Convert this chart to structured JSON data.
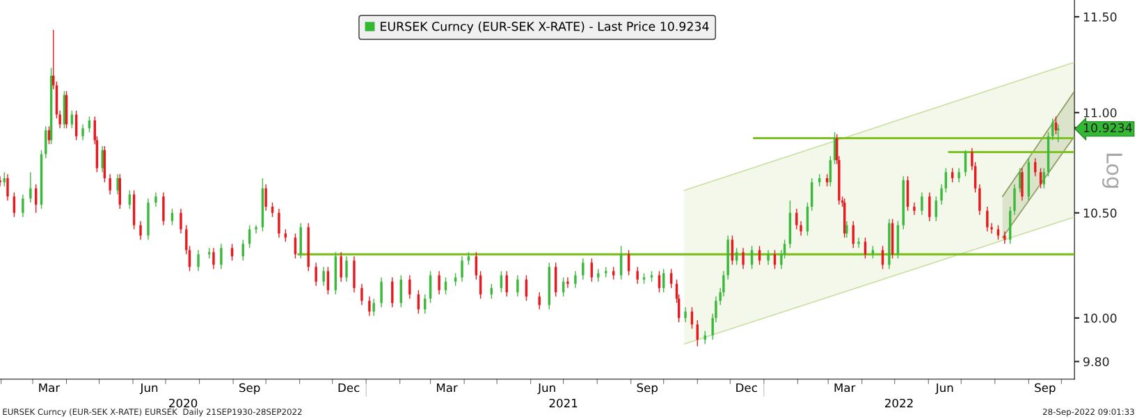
{
  "chart_data": {
    "type": "candlestick",
    "ylabel": "Log",
    "log": true,
    "grid": false,
    "legend": "top",
    "xlim": [
      "2020-01-31",
      "2022-10-13"
    ],
    "ylim": [
      9.72,
      11.59
    ],
    "yticks": [
      {
        "value": 9.8,
        "label": "9.80"
      },
      {
        "value": 10.0,
        "label": "10.00"
      },
      {
        "value": 10.5,
        "label": "10.50"
      },
      {
        "value": 11.0,
        "label": "11.00"
      },
      {
        "value": 11.5,
        "label": "11.50"
      },
      {
        "value": 10.9234,
        "label": "10.9234"
      }
    ],
    "xticks": [
      {
        "value": "2020-02-01",
        "label": null
      },
      {
        "value": "2020-03-01",
        "label": null
      },
      {
        "value": "2020-03-16",
        "label": "Mar"
      },
      {
        "value": "2020-04-01",
        "label": null
      },
      {
        "value": "2020-05-01",
        "label": null
      },
      {
        "value": "2020-06-01",
        "label": null
      },
      {
        "value": "2020-06-16",
        "label": "Jun"
      },
      {
        "value": "2020-07-01",
        "label": null
      },
      {
        "value": "2020-08-01",
        "label": null
      },
      {
        "value": "2020-09-01",
        "label": null
      },
      {
        "value": "2020-09-16",
        "label": "Sep"
      },
      {
        "value": "2020-10-01",
        "label": null
      },
      {
        "value": "2020-11-01",
        "label": null
      },
      {
        "value": "2020-12-01",
        "label": null
      },
      {
        "value": "2020-12-16",
        "label": "Dec"
      },
      {
        "value": "2021-01-01",
        "label": null
      },
      {
        "value": "2021-02-01",
        "label": null
      },
      {
        "value": "2021-03-01",
        "label": null
      },
      {
        "value": "2021-03-16",
        "label": "Mar"
      },
      {
        "value": "2021-04-01",
        "label": null
      },
      {
        "value": "2021-05-01",
        "label": null
      },
      {
        "value": "2021-06-01",
        "label": null
      },
      {
        "value": "2021-06-16",
        "label": "Jun"
      },
      {
        "value": "2021-07-01",
        "label": null
      },
      {
        "value": "2021-08-01",
        "label": null
      },
      {
        "value": "2021-09-01",
        "label": null
      },
      {
        "value": "2021-09-16",
        "label": "Sep"
      },
      {
        "value": "2021-10-01",
        "label": null
      },
      {
        "value": "2021-11-01",
        "label": null
      },
      {
        "value": "2021-12-01",
        "label": null
      },
      {
        "value": "2021-12-16",
        "label": "Dec"
      },
      {
        "value": "2022-01-01",
        "label": null
      },
      {
        "value": "2022-02-01",
        "label": null
      },
      {
        "value": "2022-03-01",
        "label": null
      },
      {
        "value": "2022-03-16",
        "label": "Mar"
      },
      {
        "value": "2022-04-01",
        "label": null
      },
      {
        "value": "2022-05-01",
        "label": null
      },
      {
        "value": "2022-06-01",
        "label": null
      },
      {
        "value": "2022-06-16",
        "label": "Jun"
      },
      {
        "value": "2022-07-01",
        "label": null
      },
      {
        "value": "2022-08-01",
        "label": null
      },
      {
        "value": "2022-09-01",
        "label": null
      },
      {
        "value": "2022-09-16",
        "label": "Sep"
      },
      {
        "value": "2022-10-01",
        "label": null
      }
    ],
    "x2lim": [
      "2020-01-31",
      "2022-10-13"
    ],
    "x2ticks": [
      {
        "value": "2020-07-17",
        "label": "2020"
      },
      {
        "value": "2021-01-01",
        "label": null
      },
      {
        "value": "2021-07-01",
        "label": "2021"
      },
      {
        "value": "2022-01-01",
        "label": null
      },
      {
        "value": "2022-05-05",
        "label": "2022"
      }
    ],
    "annotations": [
      "EURSEK Curncy (EUR-SEK X-RATE) EURSEK  Daily 21SEP1930-28SEP2022",
      "28-Sep-2022 09:01:33"
    ],
    "series": [
      {
        "type": "line",
        "x": [
          "2021-10-20",
          "2022-10-13"
        ],
        "values": [
          10.61,
          11.26
        ],
        "color": "#c9e0a2"
      },
      {
        "type": "line",
        "x": [
          "2021-10-20",
          "2022-10-13"
        ],
        "values": [
          9.88,
          10.48
        ],
        "color": "#c9e0a2"
      },
      {
        "type": "line",
        "x": [
          "2022-08-08",
          "2022-10-13"
        ],
        "values": [
          10.58,
          11.11
        ],
        "color": "#8c9a5c"
      },
      {
        "type": "line",
        "x": [
          "2022-08-08",
          "2022-10-13"
        ],
        "values": [
          10.38,
          10.88
        ],
        "color": "#8c9a5c"
      },
      {
        "type": "line",
        "x": [
          "2020-10-31",
          "2022-10-13"
        ],
        "values": [
          10.3,
          10.3
        ],
        "color": "#7dc21e"
      },
      {
        "type": "line",
        "x": [
          "2021-12-23",
          "2022-10-13"
        ],
        "values": [
          10.87,
          10.87
        ],
        "color": "#7dc21e"
      },
      {
        "type": "line",
        "x": [
          "2022-06-20",
          "2022-10-13"
        ],
        "values": [
          10.8,
          10.8
        ],
        "color": "#7dc21e"
      },
      {
        "name": "EURSEK Curncy (EUR-SEK X-RATE) - Last Price 10.9234",
        "color": "#33b833",
        "colors": [
          "#e8191e",
          "#3cb83c",
          "#e8191e",
          "#e8191e",
          "#3cb83c",
          "#3cb83c",
          "#e8191e",
          "#3cb83c",
          "#3cb83c",
          "#e8191e",
          "#3cb83c",
          "#e8191e",
          "#e8191e",
          "#e8191e",
          "#3cb83c",
          "#e8191e",
          "#3cb83c",
          "#e8191e",
          "#3cb83c",
          "#3cb83c",
          "#e8191e",
          "#e8191e",
          "#3cb83c",
          "#e8191e",
          "#e8191e",
          "#3cb83c",
          "#e8191e",
          "#3cb83c",
          "#e8191e",
          "#e8191e",
          "#3cb83c",
          "#3cb83c",
          "#e8191e",
          "#3cb83c",
          "#e8191e",
          "#e8191e",
          "#e8191e",
          "#3cb83c",
          "#3cb83c",
          "#e8191e",
          "#3cb83c",
          "#e8191e",
          "#3cb83c",
          "#3cb83c",
          "#3cb83c",
          "#3cb83c",
          "#e8191e",
          "#e8191e",
          "#e8191e",
          "#e8191e",
          "#e8191e",
          "#3cb83c",
          "#e8191e",
          "#e8191e",
          "#3cb83c",
          "#e8191e",
          "#3cb83c",
          "#e8191e",
          "#3cb83c",
          "#e8191e",
          "#e8191e",
          "#e8191e",
          "#3cb83c",
          "#3cb83c",
          "#e8191e",
          "#3cb83c",
          "#e8191e",
          "#e8191e",
          "#3cb83c",
          "#3cb83c",
          "#e8191e",
          "#3cb83c",
          "#3cb83c",
          "#3cb83c",
          "#3cb83c",
          "#e8191e",
          "#e8191e",
          "#3cb83c",
          "#3cb83c",
          "#e8191e",
          "#3cb83c",
          "#e8191e",
          "#e8191e",
          "#3cb83c",
          "#e8191e",
          "#3cb83c",
          "#e8191e",
          "#3cb83c",
          "#3cb83c",
          "#e8191e",
          "#3cb83c",
          "#3cb83c",
          "#e8191e",
          "#3cb83c",
          "#e8191e",
          "#e8191e",
          "#3cb83c",
          "#3cb83c",
          "#e8191e",
          "#3cb83c",
          "#e8191e",
          "#e8191e",
          "#e8191e",
          "#3cb83c",
          "#e8191e",
          "#e8191e",
          "#3cb83c",
          "#3cb83c",
          "#3cb83c",
          "#3cb83c",
          "#3cb83c",
          "#3cb83c",
          "#e8191e",
          "#3cb83c",
          "#e8191e",
          "#3cb83c",
          "#e8191e",
          "#3cb83c",
          "#e8191e",
          "#3cb83c",
          "#3cb83c",
          "#3cb83c",
          "#e8191e",
          "#e8191e",
          "#3cb83c",
          "#3cb83c",
          "#3cb83c",
          "#e8191e",
          "#3cb83c",
          "#3cb83c",
          "#e8191e",
          "#e8191e",
          "#e8191e",
          "#e8191e",
          "#3cb83c",
          "#e8191e",
          "#3cb83c",
          "#e8191e",
          "#3cb83c",
          "#e8191e",
          "#3cb83c",
          "#e8191e",
          "#3cb83c",
          "#3cb83c",
          "#e8191e",
          "#e8191e",
          "#3cb83c",
          "#e8191e",
          "#3cb83c",
          "#3cb83c",
          "#3cb83c",
          "#e8191e",
          "#3cb83c",
          "#3cb83c",
          "#e8191e",
          "#e8191e",
          "#e8191e",
          "#e8191e",
          "#e8191e",
          "#e8191e",
          "#e8191e",
          "#3cb83c",
          "#3cb83c",
          "#3cb83c",
          "#e8191e",
          "#3cb83c",
          "#e8191e",
          "#e8191e",
          "#3cb83c",
          "#3cb83c",
          "#3cb83c",
          "#e8191e",
          "#3cb83c"
        ],
        "x": [
          "2020-01-31",
          "2020-02-04",
          "2020-02-07",
          "2020-02-13",
          "2020-02-21",
          "2020-02-28",
          "2020-03-04",
          "2020-03-09",
          "2020-03-13",
          "2020-03-16",
          "2020-03-18",
          "2020-03-20",
          "2020-03-23",
          "2020-03-26",
          "2020-03-30",
          "2020-04-01",
          "2020-04-06",
          "2020-04-10",
          "2020-04-16",
          "2020-04-22",
          "2020-04-27",
          "2020-04-29",
          "2020-05-04",
          "2020-05-06",
          "2020-05-11",
          "2020-05-18",
          "2020-05-20",
          "2020-05-29",
          "2020-06-02",
          "2020-06-08",
          "2020-06-15",
          "2020-06-22",
          "2020-06-29",
          "2020-07-07",
          "2020-07-15",
          "2020-07-20",
          "2020-07-23",
          "2020-07-31",
          "2020-08-10",
          "2020-08-14",
          "2020-08-21",
          "2020-08-31",
          "2020-09-10",
          "2020-09-16",
          "2020-09-22",
          "2020-09-28",
          "2020-10-01",
          "2020-10-07",
          "2020-10-13",
          "2020-10-19",
          "2020-10-28",
          "2020-11-02",
          "2020-11-09",
          "2020-11-16",
          "2020-11-23",
          "2020-11-27",
          "2020-12-04",
          "2020-12-09",
          "2020-12-14",
          "2020-12-21",
          "2020-12-28",
          "2021-01-04",
          "2021-01-08",
          "2021-01-15",
          "2021-01-25",
          "2021-02-02",
          "2021-02-10",
          "2021-02-18",
          "2021-02-24",
          "2021-03-01",
          "2021-03-09",
          "2021-03-15",
          "2021-03-24",
          "2021-03-30",
          "2021-04-05",
          "2021-04-12",
          "2021-04-16",
          "2021-04-26",
          "2021-05-05",
          "2021-05-10",
          "2021-05-20",
          "2021-05-28",
          "2021-06-09",
          "2021-06-18",
          "2021-06-24",
          "2021-07-01",
          "2021-07-05",
          "2021-07-12",
          "2021-07-19",
          "2021-07-27",
          "2021-08-02",
          "2021-08-09",
          "2021-08-16",
          "2021-08-23",
          "2021-08-30",
          "2021-09-07",
          "2021-09-13",
          "2021-09-20",
          "2021-09-27",
          "2021-10-01",
          "2021-10-08",
          "2021-10-13",
          "2021-10-15",
          "2021-10-21",
          "2021-10-27",
          "2021-11-01",
          "2021-11-08",
          "2021-11-15",
          "2021-11-18",
          "2021-11-22",
          "2021-11-25",
          "2021-11-29",
          "2021-12-03",
          "2021-12-07",
          "2021-12-13",
          "2021-12-21",
          "2021-12-28",
          "2022-01-05",
          "2022-01-11",
          "2022-01-17",
          "2022-01-20",
          "2022-01-25",
          "2022-01-31",
          "2022-02-04",
          "2022-02-10",
          "2022-02-14",
          "2022-02-21",
          "2022-02-28",
          "2022-03-03",
          "2022-03-07",
          "2022-03-09",
          "2022-03-11",
          "2022-03-14",
          "2022-03-16",
          "2022-03-18",
          "2022-03-24",
          "2022-03-29",
          "2022-04-04",
          "2022-04-11",
          "2022-04-20",
          "2022-04-26",
          "2022-04-29",
          "2022-05-04",
          "2022-05-09",
          "2022-05-13",
          "2022-05-19",
          "2022-05-26",
          "2022-06-02",
          "2022-06-08",
          "2022-06-13",
          "2022-06-17",
          "2022-06-23",
          "2022-06-29",
          "2022-07-05",
          "2022-07-11",
          "2022-07-14",
          "2022-07-18",
          "2022-07-25",
          "2022-07-29",
          "2022-08-04",
          "2022-08-10",
          "2022-08-15",
          "2022-08-19",
          "2022-08-24",
          "2022-08-26",
          "2022-09-01",
          "2022-09-07",
          "2022-09-12",
          "2022-09-15",
          "2022-09-19",
          "2022-09-23",
          "2022-09-26",
          "2022-09-28"
        ],
        "ohlc": [
          [
            10.66,
            10.68,
            10.63,
            10.65
          ],
          [
            10.65,
            10.7,
            10.63,
            10.67
          ],
          [
            10.67,
            10.69,
            10.56,
            10.58
          ],
          [
            10.58,
            10.6,
            10.48,
            10.5
          ],
          [
            10.5,
            10.59,
            10.48,
            10.57
          ],
          [
            10.57,
            10.7,
            10.55,
            10.62
          ],
          [
            10.62,
            10.64,
            10.5,
            10.54
          ],
          [
            10.54,
            10.81,
            10.52,
            10.79
          ],
          [
            10.79,
            10.93,
            10.77,
            10.91
          ],
          [
            10.91,
            10.93,
            10.84,
            10.86
          ],
          [
            10.86,
            11.23,
            10.84,
            11.19
          ],
          [
            11.19,
            11.43,
            11.12,
            11.14
          ],
          [
            11.14,
            11.16,
            10.97,
            10.99
          ],
          [
            10.99,
            11.01,
            10.92,
            10.94
          ],
          [
            10.94,
            11.11,
            10.92,
            11.09
          ],
          [
            11.09,
            11.11,
            10.92,
            10.94
          ],
          [
            10.94,
            11.01,
            10.92,
            10.99
          ],
          [
            10.99,
            11.01,
            10.86,
            10.88
          ],
          [
            10.88,
            10.94,
            10.86,
            10.92
          ],
          [
            10.92,
            10.98,
            10.9,
            10.96
          ],
          [
            10.96,
            10.98,
            10.84,
            10.86
          ],
          [
            10.86,
            10.88,
            10.7,
            10.72
          ],
          [
            10.72,
            10.83,
            10.7,
            10.81
          ],
          [
            10.81,
            10.83,
            10.65,
            10.67
          ],
          [
            10.67,
            10.69,
            10.59,
            10.61
          ],
          [
            10.61,
            10.69,
            10.59,
            10.67
          ],
          [
            10.67,
            10.69,
            10.52,
            10.54
          ],
          [
            10.54,
            10.61,
            10.52,
            10.59
          ],
          [
            10.59,
            10.61,
            10.42,
            10.44
          ],
          [
            10.44,
            10.46,
            10.37,
            10.39
          ],
          [
            10.39,
            10.57,
            10.37,
            10.55
          ],
          [
            10.55,
            10.6,
            10.53,
            10.58
          ],
          [
            10.58,
            10.6,
            10.44,
            10.46
          ],
          [
            10.46,
            10.52,
            10.44,
            10.5
          ],
          [
            10.5,
            10.52,
            10.4,
            10.42
          ],
          [
            10.42,
            10.44,
            10.3,
            10.32
          ],
          [
            10.32,
            10.34,
            10.22,
            10.24
          ],
          [
            10.24,
            10.32,
            10.22,
            10.3
          ],
          [
            10.3,
            10.33,
            10.28,
            10.31
          ],
          [
            10.31,
            10.33,
            10.23,
            10.25
          ],
          [
            10.25,
            10.35,
            10.23,
            10.33
          ],
          [
            10.33,
            10.35,
            10.27,
            10.29
          ],
          [
            10.29,
            10.37,
            10.27,
            10.35
          ],
          [
            10.35,
            10.44,
            10.33,
            10.42
          ],
          [
            10.42,
            10.44,
            10.4,
            10.43
          ],
          [
            10.43,
            10.67,
            10.41,
            10.62
          ],
          [
            10.62,
            10.64,
            10.51,
            10.53
          ],
          [
            10.53,
            10.55,
            10.48,
            10.5
          ],
          [
            10.5,
            10.52,
            10.38,
            10.4
          ],
          [
            10.4,
            10.42,
            10.36,
            10.38
          ],
          [
            10.38,
            10.4,
            10.28,
            10.3
          ],
          [
            10.3,
            10.45,
            10.28,
            10.43
          ],
          [
            10.43,
            10.45,
            10.22,
            10.24
          ],
          [
            10.24,
            10.26,
            10.15,
            10.17
          ],
          [
            10.17,
            10.24,
            10.15,
            10.22
          ],
          [
            10.22,
            10.24,
            10.11,
            10.13
          ],
          [
            10.13,
            10.31,
            10.11,
            10.29
          ],
          [
            10.29,
            10.31,
            10.17,
            10.19
          ],
          [
            10.19,
            10.29,
            10.17,
            10.27
          ],
          [
            10.27,
            10.29,
            10.12,
            10.14
          ],
          [
            10.14,
            10.16,
            10.06,
            10.08
          ],
          [
            10.08,
            10.1,
            10.01,
            10.03
          ],
          [
            10.03,
            10.09,
            10.01,
            10.07
          ],
          [
            10.07,
            10.19,
            10.05,
            10.17
          ],
          [
            10.17,
            10.19,
            10.05,
            10.07
          ],
          [
            10.07,
            10.2,
            10.05,
            10.18
          ],
          [
            10.18,
            10.2,
            10.09,
            10.11
          ],
          [
            10.11,
            10.13,
            10.02,
            10.04
          ],
          [
            10.04,
            10.11,
            10.02,
            10.09
          ],
          [
            10.09,
            10.22,
            10.07,
            10.2
          ],
          [
            10.2,
            10.22,
            10.11,
            10.13
          ],
          [
            10.13,
            10.19,
            10.11,
            10.17
          ],
          [
            10.17,
            10.21,
            10.15,
            10.19
          ],
          [
            10.19,
            10.29,
            10.17,
            10.27
          ],
          [
            10.27,
            10.31,
            10.25,
            10.29
          ],
          [
            10.29,
            10.31,
            10.18,
            10.2
          ],
          [
            10.2,
            10.22,
            10.09,
            10.11
          ],
          [
            10.11,
            10.16,
            10.09,
            10.14
          ],
          [
            10.14,
            10.22,
            10.12,
            10.2
          ],
          [
            10.2,
            10.22,
            10.1,
            10.12
          ],
          [
            10.12,
            10.2,
            10.1,
            10.18
          ],
          [
            10.18,
            10.2,
            10.08,
            10.1
          ],
          [
            10.1,
            10.12,
            10.04,
            10.06
          ],
          [
            10.06,
            10.26,
            10.04,
            10.24
          ],
          [
            10.24,
            10.26,
            10.1,
            10.12
          ],
          [
            10.12,
            10.19,
            10.1,
            10.17
          ],
          [
            10.17,
            10.19,
            10.14,
            10.16
          ],
          [
            10.16,
            10.22,
            10.14,
            10.2
          ],
          [
            10.2,
            10.28,
            10.18,
            10.26
          ],
          [
            10.26,
            10.28,
            10.17,
            10.19
          ],
          [
            10.19,
            10.23,
            10.17,
            10.21
          ],
          [
            10.21,
            10.24,
            10.19,
            10.22
          ],
          [
            10.22,
            10.24,
            10.18,
            10.2
          ],
          [
            10.2,
            10.34,
            10.18,
            10.3
          ],
          [
            10.3,
            10.32,
            10.2,
            10.22
          ],
          [
            10.22,
            10.24,
            10.16,
            10.18
          ],
          [
            10.18,
            10.21,
            10.16,
            10.19
          ],
          [
            10.19,
            10.22,
            10.17,
            10.2
          ],
          [
            10.2,
            10.22,
            10.12,
            10.14
          ],
          [
            10.14,
            10.23,
            10.12,
            10.21
          ],
          [
            10.21,
            10.23,
            10.14,
            10.16
          ],
          [
            10.16,
            10.18,
            10.07,
            10.09
          ],
          [
            10.09,
            10.11,
            9.98,
            10.0
          ],
          [
            10.0,
            10.05,
            9.98,
            10.03
          ],
          [
            10.03,
            10.05,
            9.95,
            9.97
          ],
          [
            9.97,
            9.99,
            9.87,
            9.9
          ],
          [
            9.9,
            9.94,
            9.88,
            9.92
          ],
          [
            9.92,
            10.02,
            9.9,
            10.0
          ],
          [
            10.0,
            10.1,
            9.98,
            10.08
          ],
          [
            10.08,
            10.14,
            10.06,
            10.12
          ],
          [
            10.12,
            10.22,
            10.1,
            10.2
          ],
          [
            10.2,
            10.39,
            10.18,
            10.37
          ],
          [
            10.37,
            10.39,
            10.25,
            10.27
          ],
          [
            10.27,
            10.33,
            10.25,
            10.31
          ],
          [
            10.31,
            10.33,
            10.23,
            10.25
          ],
          [
            10.25,
            10.34,
            10.23,
            10.32
          ],
          [
            10.32,
            10.34,
            10.25,
            10.27
          ],
          [
            10.27,
            10.32,
            10.25,
            10.3
          ],
          [
            10.3,
            10.32,
            10.23,
            10.25
          ],
          [
            10.25,
            10.32,
            10.23,
            10.3
          ],
          [
            10.3,
            10.37,
            10.28,
            10.35
          ],
          [
            10.35,
            10.56,
            10.33,
            10.5
          ],
          [
            10.5,
            10.52,
            10.42,
            10.44
          ],
          [
            10.44,
            10.46,
            10.39,
            10.41
          ],
          [
            10.41,
            10.55,
            10.39,
            10.53
          ],
          [
            10.53,
            10.67,
            10.51,
            10.65
          ],
          [
            10.65,
            10.69,
            10.63,
            10.67
          ],
          [
            10.67,
            10.69,
            10.63,
            10.65
          ],
          [
            10.65,
            10.78,
            10.63,
            10.76
          ],
          [
            10.76,
            10.9,
            10.74,
            10.87
          ],
          [
            10.87,
            10.89,
            10.74,
            10.76
          ],
          [
            10.76,
            10.78,
            10.54,
            10.56
          ],
          [
            10.56,
            10.58,
            10.53,
            10.55
          ],
          [
            10.55,
            10.57,
            10.38,
            10.4
          ],
          [
            10.4,
            10.46,
            10.38,
            10.44
          ],
          [
            10.44,
            10.46,
            10.33,
            10.35
          ],
          [
            10.35,
            10.38,
            10.33,
            10.36
          ],
          [
            10.36,
            10.38,
            10.28,
            10.3
          ],
          [
            10.3,
            10.34,
            10.28,
            10.32
          ],
          [
            10.32,
            10.34,
            10.23,
            10.25
          ],
          [
            10.25,
            10.47,
            10.23,
            10.45
          ],
          [
            10.45,
            10.47,
            10.28,
            10.3
          ],
          [
            10.3,
            10.46,
            10.28,
            10.44
          ],
          [
            10.44,
            10.68,
            10.42,
            10.66
          ],
          [
            10.66,
            10.68,
            10.51,
            10.53
          ],
          [
            10.53,
            10.55,
            10.49,
            10.51
          ],
          [
            10.51,
            10.6,
            10.49,
            10.58
          ],
          [
            10.58,
            10.6,
            10.46,
            10.48
          ],
          [
            10.48,
            10.58,
            10.46,
            10.56
          ],
          [
            10.56,
            10.64,
            10.54,
            10.62
          ],
          [
            10.62,
            10.72,
            10.6,
            10.7
          ],
          [
            10.7,
            10.72,
            10.65,
            10.67
          ],
          [
            10.67,
            10.72,
            10.65,
            10.7
          ],
          [
            10.7,
            10.81,
            10.68,
            10.8
          ],
          [
            10.8,
            10.82,
            10.71,
            10.73
          ],
          [
            10.73,
            10.75,
            10.6,
            10.62
          ],
          [
            10.62,
            10.64,
            10.49,
            10.51
          ],
          [
            10.51,
            10.53,
            10.41,
            10.43
          ],
          [
            10.43,
            10.45,
            10.4,
            10.42
          ],
          [
            10.42,
            10.44,
            10.37,
            10.39
          ],
          [
            10.39,
            10.41,
            10.35,
            10.37
          ],
          [
            10.37,
            10.53,
            10.35,
            10.51
          ],
          [
            10.51,
            10.64,
            10.49,
            10.62
          ],
          [
            10.62,
            10.72,
            10.6,
            10.7
          ],
          [
            10.7,
            10.72,
            10.56,
            10.58
          ],
          [
            10.58,
            10.77,
            10.56,
            10.75
          ],
          [
            10.75,
            10.77,
            10.68,
            10.7
          ],
          [
            10.7,
            10.72,
            10.62,
            10.64
          ],
          [
            10.64,
            10.72,
            10.62,
            10.7
          ],
          [
            10.7,
            10.9,
            10.68,
            10.88
          ],
          [
            10.88,
            10.97,
            10.86,
            10.95
          ],
          [
            10.95,
            10.98,
            10.89,
            10.91
          ],
          [
            10.91,
            10.94,
            10.85,
            10.92
          ]
        ]
      }
    ]
  }
}
